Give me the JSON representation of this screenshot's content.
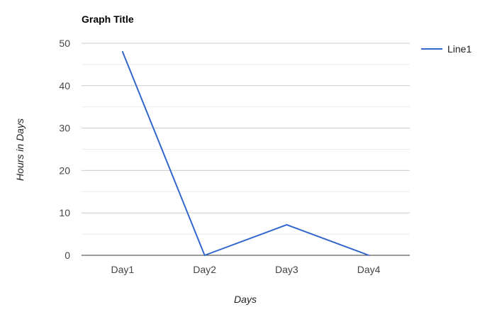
{
  "chart_data": {
    "type": "line",
    "title": "Graph Title",
    "xlabel": "Days",
    "ylabel": "Hours in Days",
    "categories": [
      "Day1",
      "Day2",
      "Day3",
      "Day4"
    ],
    "yticks": [
      "0",
      "10",
      "20",
      "30",
      "40",
      "50"
    ],
    "ylim": [
      0,
      50
    ],
    "grid": true,
    "legend_position": "right",
    "series": [
      {
        "name": "Line1",
        "values": [
          48,
          0,
          7.2,
          0
        ],
        "color": "#3366cc"
      }
    ]
  },
  "colors": {
    "major_grid": "#cccccc",
    "minor_grid": "#ebebeb",
    "baseline": "#333333"
  }
}
